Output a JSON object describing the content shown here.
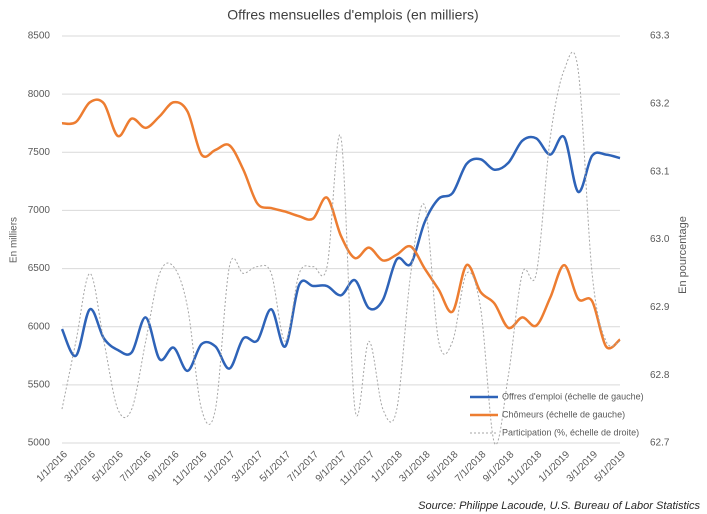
{
  "chart_data": {
    "type": "line",
    "title": "Offres mensuelles d'emplois (en milliers)",
    "y_label": "En milliers",
    "y2_label": "En pourcentage",
    "source": "Source: Philippe Lacoude, U.S. Bureau of Labor Statistics",
    "categories": [
      "1/1/2016",
      null,
      "3/1/2016",
      null,
      "5/1/2016",
      null,
      "7/1/2016",
      null,
      "9/1/2016",
      null,
      "11/1/2016",
      null,
      "1/1/2017",
      null,
      "3/1/2017",
      null,
      "5/1/2017",
      null,
      "7/1/2017",
      null,
      "9/1/2017",
      null,
      "11/1/2017",
      null,
      "1/1/2018",
      null,
      "3/1/2018",
      null,
      "5/1/2018",
      null,
      "7/1/2018",
      null,
      "9/1/2018",
      null,
      "11/1/2018",
      null,
      "1/1/2019",
      null,
      "3/1/2019",
      null,
      "5/1/2019"
    ],
    "series": [
      {
        "name": "Offres d'emploi (échelle de gauche)",
        "color": "#2e63b8",
        "style": "solid",
        "values": [
          5980,
          5750,
          6150,
          5900,
          5800,
          5780,
          6080,
          5720,
          5820,
          5620,
          5850,
          5830,
          5640,
          5900,
          5880,
          6150,
          5830,
          6360,
          6350,
          6350,
          6270,
          6400,
          6160,
          6230,
          6580,
          6540,
          6900,
          7100,
          7150,
          7400,
          7440,
          7350,
          7410,
          7600,
          7620,
          7480,
          7630,
          7160,
          7470,
          7480,
          7450
        ]
      },
      {
        "name": "Chômeurs (échelle de gauche)",
        "color": "#ed7d31",
        "style": "solid",
        "values": [
          7750,
          7760,
          7930,
          7920,
          7640,
          7790,
          7710,
          7810,
          7930,
          7850,
          7480,
          7520,
          7560,
          7350,
          7060,
          7020,
          6990,
          6950,
          6930,
          7110,
          6780,
          6590,
          6680,
          6570,
          6620,
          6690,
          6500,
          6320,
          6130,
          6530,
          6300,
          6200,
          5990,
          6080,
          6010,
          6250,
          6530,
          6240,
          6220,
          5830,
          5890
        ]
      },
      {
        "name": "Participation (%, échelle de droite)",
        "color": "#a6a6a6",
        "style": "dotted",
        "axis": "y2",
        "values": [
          62.75,
          62.85,
          62.95,
          62.85,
          62.75,
          62.75,
          62.85,
          62.95,
          62.96,
          62.9,
          62.75,
          62.75,
          62.96,
          62.95,
          62.96,
          62.95,
          62.85,
          62.95,
          62.96,
          62.96,
          63.15,
          62.75,
          62.85,
          62.75,
          62.75,
          62.95,
          63.05,
          62.85,
          62.85,
          62.95,
          62.9,
          62.7,
          62.8,
          62.95,
          62.95,
          63.15,
          63.25,
          63.25,
          62.95,
          62.85,
          62.85
        ]
      }
    ],
    "ylim": [
      5000,
      8500
    ],
    "yticks": [
      5000,
      5500,
      6000,
      6500,
      7000,
      7500,
      8000,
      8500
    ],
    "y2lim": [
      62.7,
      63.3
    ],
    "y2ticks": [
      62.7,
      62.8,
      62.9,
      {
        "value": 63,
        "label": "63.0"
      },
      63.1,
      63.2,
      63.3
    ],
    "grid": true,
    "legend": "lower right"
  }
}
